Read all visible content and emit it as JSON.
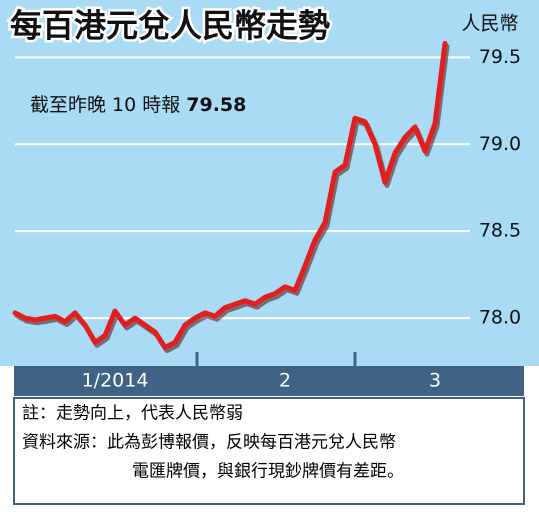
{
  "chart_data": {
    "type": "line",
    "title": "每百港元兌人民幣走勢",
    "ylabel": "人民幣",
    "annotation": "截至昨晚 10 時報",
    "categories": [
      null,
      null,
      null,
      null,
      null,
      null,
      null,
      null,
      null,
      null,
      "1/2014",
      null,
      null,
      null,
      null,
      null,
      null,
      null,
      null,
      null,
      null,
      null,
      null,
      null,
      null,
      null,
      null,
      "2",
      null,
      null,
      null,
      null,
      null,
      null,
      null,
      null,
      null,
      null,
      null,
      null,
      null,
      null,
      "3",
      null
    ],
    "series": [
      {
        "color": "#e31e1e",
        "values": [
          78.03,
          78.0,
          77.99,
          78.0,
          78.01,
          77.98,
          78.03,
          77.96,
          77.86,
          77.9,
          78.04,
          77.96,
          78.0,
          77.96,
          77.92,
          77.83,
          77.86,
          77.96,
          78.0,
          78.03,
          78.01,
          78.06,
          78.08,
          78.1,
          78.08,
          78.12,
          78.14,
          78.18,
          78.16,
          78.3,
          78.45,
          78.55,
          78.84,
          78.88,
          79.15,
          79.13,
          79.0,
          78.78,
          78.95,
          79.04,
          79.1,
          78.96,
          79.12,
          79.58
        ]
      }
    ],
    "ylim": [
      77.73,
      79.83
    ],
    "yticks": [
      {
        "value": 78,
        "label": "78.0"
      },
      78.5,
      {
        "value": 79,
        "label": "79.0"
      },
      79.5
    ],
    "grid": true,
    "notes": [
      "註：走勢向上，代表人民幣弱",
      "資料來源：此為彭博報價，反映每百港元兌人民幣",
      "電匯牌價，與銀行現鈔牌價有差距。"
    ]
  }
}
